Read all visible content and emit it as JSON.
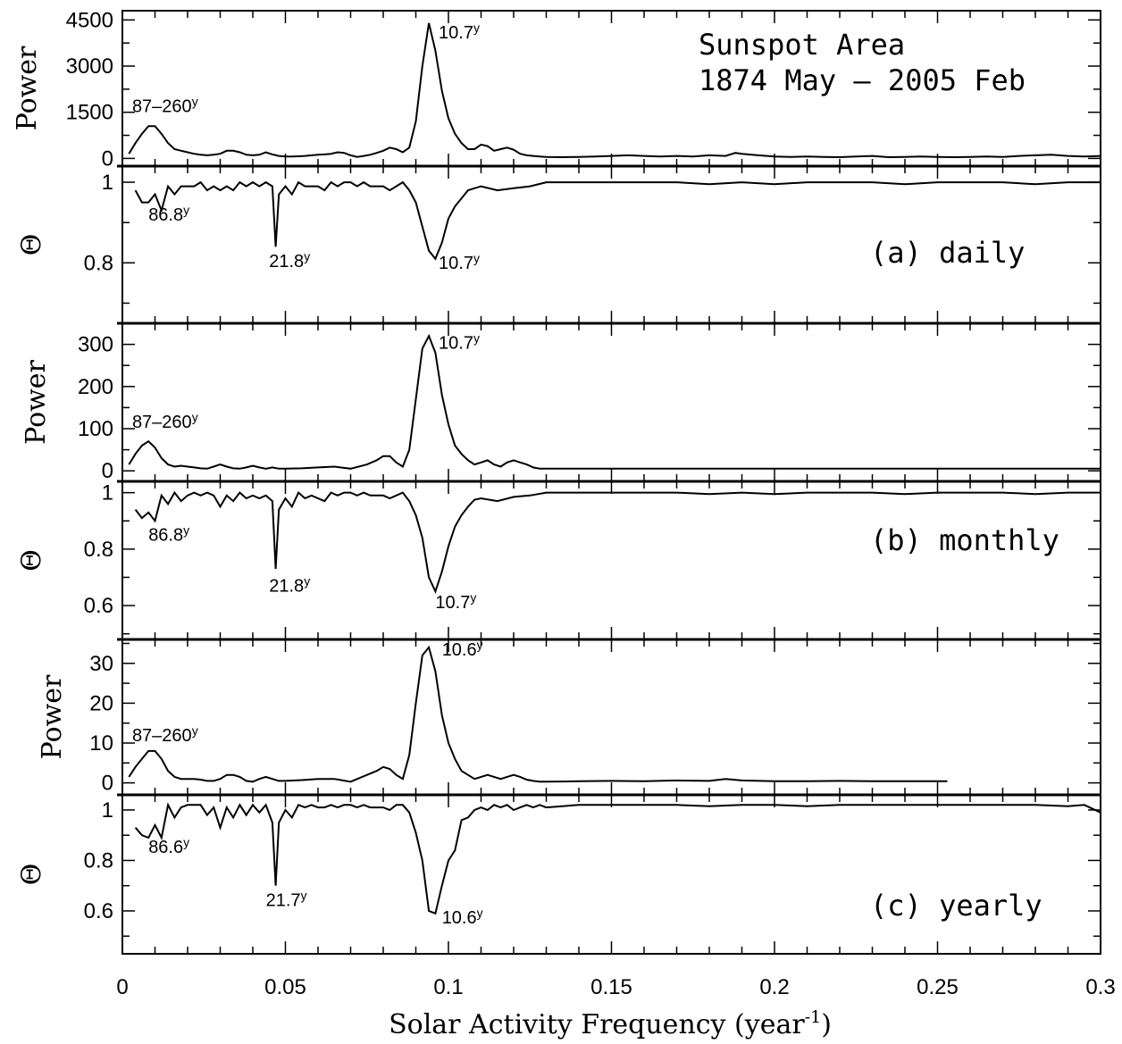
{
  "chart_data": {
    "type": "line",
    "title": [
      "Sunspot Area",
      "1874 May – 2005 Feb"
    ],
    "xlabel": "Solar Activity Frequency (year",
    "xlabel_sup": "-1",
    "xlabel_end": ")",
    "xlim": [
      0,
      0.3
    ],
    "xticks": [
      "0",
      "0.05",
      "0.1",
      "0.15",
      "0.2",
      "0.25",
      "0.3"
    ],
    "xtick_values": [
      0,
      0.05,
      0.1,
      0.15,
      0.2,
      0.25,
      0.3
    ],
    "panels": [
      {
        "label": "",
        "ylabel": "Power",
        "ylim": [
          -250,
          4800
        ],
        "yticks": [
          "0",
          "1500",
          "3000",
          "4500"
        ],
        "ytick_values": [
          0,
          1500,
          3000,
          4500
        ],
        "x": [
          0.002,
          0.004,
          0.006,
          0.008,
          0.01,
          0.012,
          0.014,
          0.016,
          0.018,
          0.02,
          0.022,
          0.024,
          0.026,
          0.028,
          0.03,
          0.032,
          0.034,
          0.036,
          0.038,
          0.04,
          0.042,
          0.044,
          0.046,
          0.048,
          0.05,
          0.052,
          0.054,
          0.056,
          0.058,
          0.06,
          0.062,
          0.064,
          0.066,
          0.068,
          0.07,
          0.072,
          0.074,
          0.076,
          0.078,
          0.08,
          0.082,
          0.084,
          0.086,
          0.088,
          0.09,
          0.092,
          0.094,
          0.096,
          0.098,
          0.1,
          0.102,
          0.104,
          0.106,
          0.108,
          0.11,
          0.112,
          0.114,
          0.116,
          0.118,
          0.12,
          0.122,
          0.124,
          0.126,
          0.128,
          0.13,
          0.135,
          0.14,
          0.145,
          0.15,
          0.155,
          0.16,
          0.165,
          0.17,
          0.175,
          0.18,
          0.185,
          0.188,
          0.19,
          0.195,
          0.2,
          0.205,
          0.21,
          0.215,
          0.22,
          0.225,
          0.23,
          0.235,
          0.24,
          0.245,
          0.25,
          0.255,
          0.26,
          0.265,
          0.27,
          0.275,
          0.28,
          0.285,
          0.29,
          0.295,
          0.3
        ],
        "y": [
          150,
          500,
          800,
          1050,
          1050,
          800,
          500,
          300,
          250,
          200,
          150,
          120,
          100,
          120,
          150,
          250,
          250,
          200,
          120,
          100,
          120,
          200,
          130,
          80,
          60,
          60,
          70,
          80,
          100,
          120,
          130,
          150,
          200,
          180,
          100,
          50,
          80,
          120,
          180,
          250,
          350,
          300,
          200,
          350,
          1200,
          3000,
          4400,
          3500,
          2200,
          1300,
          800,
          500,
          300,
          300,
          450,
          400,
          250,
          300,
          350,
          280,
          150,
          100,
          80,
          60,
          50,
          40,
          50,
          60,
          80,
          100,
          80,
          60,
          80,
          60,
          100,
          80,
          180,
          150,
          100,
          60,
          50,
          60,
          50,
          40,
          60,
          80,
          40,
          50,
          60,
          50,
          40,
          50,
          60,
          50,
          80,
          100,
          120,
          80,
          60,
          80
        ]
      },
      {
        "label": "(a) daily",
        "ylabel": "Θ",
        "ylim": [
          0.65,
          1.04
        ],
        "yticks": [
          "0.8",
          "1"
        ],
        "ytick_values": [
          0.8,
          1.0
        ],
        "x": [
          0.004,
          0.006,
          0.008,
          0.01,
          0.012,
          0.014,
          0.016,
          0.018,
          0.02,
          0.022,
          0.024,
          0.026,
          0.028,
          0.03,
          0.032,
          0.034,
          0.036,
          0.038,
          0.04,
          0.042,
          0.044,
          0.046,
          0.047,
          0.048,
          0.05,
          0.052,
          0.054,
          0.056,
          0.058,
          0.06,
          0.062,
          0.064,
          0.066,
          0.068,
          0.07,
          0.072,
          0.074,
          0.076,
          0.078,
          0.08,
          0.082,
          0.084,
          0.086,
          0.088,
          0.09,
          0.092,
          0.094,
          0.096,
          0.098,
          0.1,
          0.102,
          0.104,
          0.106,
          0.108,
          0.11,
          0.115,
          0.12,
          0.125,
          0.13,
          0.14,
          0.15,
          0.16,
          0.17,
          0.18,
          0.19,
          0.2,
          0.21,
          0.22,
          0.23,
          0.24,
          0.25,
          0.26,
          0.27,
          0.28,
          0.29,
          0.3
        ],
        "y": [
          0.98,
          0.95,
          0.95,
          0.97,
          0.93,
          0.99,
          0.97,
          0.99,
          0.99,
          0.99,
          1.0,
          0.98,
          0.99,
          0.98,
          0.99,
          0.98,
          1.0,
          0.99,
          1.0,
          0.99,
          1.0,
          0.99,
          0.84,
          0.97,
          0.99,
          0.97,
          1.0,
          0.99,
          0.99,
          0.99,
          0.98,
          1.0,
          0.99,
          1.0,
          1.0,
          0.99,
          1.0,
          0.99,
          0.99,
          0.99,
          0.98,
          0.99,
          1.0,
          0.98,
          0.95,
          0.89,
          0.83,
          0.81,
          0.85,
          0.91,
          0.94,
          0.96,
          0.98,
          0.985,
          0.99,
          0.98,
          0.985,
          0.99,
          1.0,
          1.0,
          1.0,
          1.0,
          1.0,
          0.995,
          1.0,
          0.995,
          1.0,
          1.0,
          1.0,
          0.995,
          1.0,
          1.0,
          1.0,
          0.995,
          1.0,
          1.0
        ]
      },
      {
        "label": "",
        "ylabel": "Power",
        "ylim": [
          -25,
          350
        ],
        "yticks": [
          "0",
          "100",
          "200",
          "300"
        ],
        "ytick_values": [
          0,
          100,
          200,
          300
        ],
        "x": [
          0.002,
          0.004,
          0.006,
          0.008,
          0.01,
          0.012,
          0.014,
          0.016,
          0.018,
          0.02,
          0.022,
          0.024,
          0.026,
          0.028,
          0.03,
          0.032,
          0.034,
          0.036,
          0.038,
          0.04,
          0.042,
          0.044,
          0.046,
          0.048,
          0.05,
          0.055,
          0.06,
          0.065,
          0.07,
          0.075,
          0.078,
          0.08,
          0.082,
          0.084,
          0.086,
          0.088,
          0.09,
          0.092,
          0.094,
          0.096,
          0.098,
          0.1,
          0.102,
          0.104,
          0.106,
          0.108,
          0.11,
          0.112,
          0.114,
          0.116,
          0.118,
          0.12,
          0.122,
          0.124,
          0.126,
          0.128,
          0.13,
          0.14,
          0.15,
          0.16,
          0.17,
          0.18,
          0.19,
          0.2,
          0.21,
          0.22,
          0.23,
          0.24,
          0.25,
          0.26,
          0.27,
          0.28,
          0.29,
          0.3
        ],
        "y": [
          15,
          40,
          60,
          70,
          55,
          30,
          15,
          10,
          12,
          10,
          8,
          6,
          5,
          10,
          15,
          10,
          6,
          5,
          8,
          12,
          8,
          5,
          8,
          5,
          5,
          6,
          8,
          10,
          5,
          15,
          25,
          35,
          35,
          20,
          10,
          50,
          170,
          290,
          320,
          280,
          180,
          110,
          60,
          40,
          25,
          15,
          20,
          25,
          15,
          10,
          20,
          25,
          20,
          15,
          8,
          5,
          5,
          5,
          5,
          5,
          5,
          5,
          5,
          5,
          5,
          5,
          5,
          5,
          5,
          5,
          5,
          5,
          5,
          5
        ]
      },
      {
        "label": "(b) monthly",
        "ylabel": "Θ",
        "ylim": [
          0.48,
          1.04
        ],
        "yticks": [
          "0.6",
          "0.8",
          "1"
        ],
        "ytick_values": [
          0.6,
          0.8,
          1.0
        ],
        "x": [
          0.004,
          0.006,
          0.008,
          0.01,
          0.012,
          0.014,
          0.016,
          0.018,
          0.02,
          0.022,
          0.024,
          0.026,
          0.028,
          0.03,
          0.032,
          0.034,
          0.036,
          0.038,
          0.04,
          0.042,
          0.044,
          0.046,
          0.047,
          0.048,
          0.05,
          0.052,
          0.054,
          0.056,
          0.058,
          0.06,
          0.062,
          0.064,
          0.066,
          0.068,
          0.07,
          0.072,
          0.074,
          0.076,
          0.078,
          0.08,
          0.082,
          0.084,
          0.086,
          0.088,
          0.09,
          0.092,
          0.094,
          0.096,
          0.098,
          0.1,
          0.102,
          0.104,
          0.106,
          0.108,
          0.11,
          0.115,
          0.12,
          0.125,
          0.13,
          0.14,
          0.15,
          0.16,
          0.17,
          0.18,
          0.19,
          0.2,
          0.21,
          0.22,
          0.23,
          0.24,
          0.25,
          0.26,
          0.27,
          0.28,
          0.29,
          0.3
        ],
        "y": [
          0.94,
          0.91,
          0.93,
          0.9,
          0.99,
          0.96,
          1.0,
          0.97,
          0.99,
          1.0,
          0.99,
          1.0,
          0.99,
          0.95,
          0.99,
          0.97,
          1.0,
          0.98,
          0.99,
          0.98,
          0.99,
          0.97,
          0.73,
          0.94,
          0.98,
          0.95,
          1.0,
          0.98,
          0.99,
          0.98,
          0.97,
          1.0,
          0.99,
          1.0,
          1.0,
          0.99,
          1.0,
          0.99,
          0.99,
          0.99,
          0.98,
          0.99,
          1.0,
          0.97,
          0.92,
          0.84,
          0.7,
          0.65,
          0.72,
          0.81,
          0.88,
          0.92,
          0.95,
          0.975,
          0.98,
          0.97,
          0.985,
          0.99,
          1.0,
          1.0,
          1.0,
          1.0,
          1.0,
          0.995,
          1.0,
          0.995,
          1.0,
          1.0,
          1.0,
          0.995,
          1.0,
          1.0,
          1.0,
          0.995,
          1.0,
          1.0
        ]
      },
      {
        "label": "",
        "ylabel": "Power",
        "ylim": [
          -3,
          36
        ],
        "yticks": [
          "0",
          "10",
          "20",
          "30"
        ],
        "ytick_values": [
          0,
          10,
          20,
          30
        ],
        "x": [
          0.002,
          0.004,
          0.006,
          0.008,
          0.01,
          0.012,
          0.014,
          0.016,
          0.018,
          0.02,
          0.022,
          0.024,
          0.026,
          0.028,
          0.03,
          0.032,
          0.034,
          0.036,
          0.038,
          0.04,
          0.042,
          0.044,
          0.046,
          0.048,
          0.05,
          0.055,
          0.06,
          0.065,
          0.07,
          0.075,
          0.078,
          0.08,
          0.082,
          0.084,
          0.086,
          0.088,
          0.09,
          0.092,
          0.094,
          0.096,
          0.098,
          0.1,
          0.102,
          0.104,
          0.106,
          0.108,
          0.11,
          0.112,
          0.114,
          0.116,
          0.118,
          0.12,
          0.122,
          0.124,
          0.126,
          0.128,
          0.13,
          0.14,
          0.15,
          0.16,
          0.17,
          0.18,
          0.185,
          0.19,
          0.2,
          0.21,
          0.22,
          0.23,
          0.24,
          0.25,
          0.253
        ],
        "y": [
          1.5,
          4,
          6,
          8,
          8,
          6,
          3,
          1.5,
          1,
          1,
          1,
          0.8,
          0.5,
          0.5,
          1,
          2,
          2,
          1.5,
          0.5,
          0.3,
          1,
          1.5,
          1,
          0.5,
          0.5,
          0.7,
          1,
          1,
          0.3,
          2,
          3,
          4,
          3.5,
          2,
          1,
          7,
          20,
          32,
          34,
          28,
          17,
          10,
          6,
          3,
          2,
          1,
          1.5,
          2,
          1.5,
          1,
          1.5,
          2,
          1.5,
          0.8,
          0.5,
          0.3,
          0.3,
          0.4,
          0.5,
          0.4,
          0.6,
          0.5,
          1,
          0.6,
          0.4,
          0.4,
          0.5,
          0.4,
          0.4,
          0.4,
          0.4
        ]
      },
      {
        "label": "(c) yearly",
        "ylabel": "Θ",
        "ylim": [
          0.43,
          1.06
        ],
        "yticks": [
          "0.6",
          "0.8",
          "1"
        ],
        "ytick_values": [
          0.6,
          0.8,
          1.0
        ],
        "x": [
          0.004,
          0.006,
          0.008,
          0.01,
          0.012,
          0.014,
          0.016,
          0.018,
          0.02,
          0.022,
          0.024,
          0.026,
          0.028,
          0.03,
          0.032,
          0.034,
          0.036,
          0.038,
          0.04,
          0.042,
          0.044,
          0.046,
          0.047,
          0.048,
          0.05,
          0.052,
          0.054,
          0.056,
          0.058,
          0.06,
          0.062,
          0.064,
          0.066,
          0.068,
          0.07,
          0.072,
          0.074,
          0.076,
          0.078,
          0.08,
          0.082,
          0.084,
          0.086,
          0.088,
          0.09,
          0.092,
          0.094,
          0.096,
          0.098,
          0.1,
          0.102,
          0.104,
          0.106,
          0.108,
          0.11,
          0.112,
          0.114,
          0.116,
          0.118,
          0.12,
          0.122,
          0.124,
          0.126,
          0.128,
          0.13,
          0.14,
          0.15,
          0.16,
          0.17,
          0.18,
          0.19,
          0.2,
          0.21,
          0.22,
          0.23,
          0.24,
          0.25,
          0.26,
          0.27,
          0.28,
          0.29,
          0.295,
          0.3
        ],
        "y": [
          0.93,
          0.9,
          0.89,
          0.94,
          0.89,
          1.02,
          0.97,
          1.01,
          1.02,
          1.02,
          1.02,
          0.98,
          1.01,
          0.93,
          1.01,
          0.97,
          1.02,
          0.98,
          1.02,
          0.99,
          1.02,
          0.95,
          0.7,
          0.95,
          1.0,
          0.97,
          1.02,
          1.01,
          1.02,
          1.01,
          1.01,
          1.02,
          1.01,
          1.02,
          1.02,
          1.01,
          1.02,
          1.01,
          1.01,
          1.01,
          1.0,
          1.02,
          1.02,
          0.99,
          0.91,
          0.8,
          0.6,
          0.59,
          0.7,
          0.8,
          0.84,
          0.96,
          0.97,
          1.0,
          1.01,
          1.0,
          1.02,
          1.01,
          1.02,
          1.0,
          1.01,
          1.02,
          1.01,
          1.02,
          1.01,
          1.02,
          1.02,
          1.02,
          1.02,
          1.015,
          1.02,
          1.02,
          1.015,
          1.02,
          1.02,
          1.02,
          1.02,
          1.02,
          1.02,
          1.02,
          1.015,
          1.02,
          0.99
        ]
      }
    ],
    "annotations": [
      {
        "panel": 0,
        "text": "87–260",
        "sup": "y",
        "x": 0.003,
        "y": 1500
      },
      {
        "panel": 0,
        "text": "10.7",
        "sup": "y",
        "x": 0.097,
        "y": 3900
      },
      {
        "panel": 1,
        "text": "86.8",
        "sup": "y",
        "x": 0.008,
        "y": 0.905
      },
      {
        "panel": 1,
        "text": "21.8",
        "sup": "y",
        "x": 0.045,
        "y": 0.79
      },
      {
        "panel": 1,
        "text": "10.7",
        "sup": "y",
        "x": 0.097,
        "y": 0.785
      },
      {
        "panel": 2,
        "text": "87–260",
        "sup": "y",
        "x": 0.003,
        "y": 102
      },
      {
        "panel": 2,
        "text": "10.7",
        "sup": "y",
        "x": 0.097,
        "y": 290
      },
      {
        "panel": 3,
        "text": "86.8",
        "sup": "y",
        "x": 0.008,
        "y": 0.83
      },
      {
        "panel": 3,
        "text": "21.8",
        "sup": "y",
        "x": 0.045,
        "y": 0.65
      },
      {
        "panel": 3,
        "text": "10.7",
        "sup": "y",
        "x": 0.096,
        "y": 0.59
      },
      {
        "panel": 4,
        "text": "87–260",
        "sup": "y",
        "x": 0.003,
        "y": 10.5
      },
      {
        "panel": 4,
        "text": "10.6",
        "sup": "y",
        "x": 0.098,
        "y": 32
      },
      {
        "panel": 5,
        "text": "86.6",
        "sup": "y",
        "x": 0.008,
        "y": 0.83
      },
      {
        "panel": 5,
        "text": "21.7",
        "sup": "y",
        "x": 0.044,
        "y": 0.62
      },
      {
        "panel": 5,
        "text": "10.6",
        "sup": "y",
        "x": 0.098,
        "y": 0.55
      }
    ]
  }
}
